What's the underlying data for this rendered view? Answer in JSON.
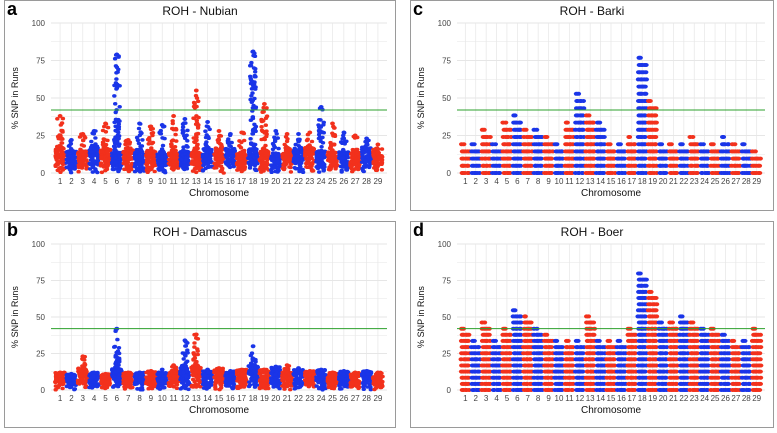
{
  "chart_data": [
    {
      "id": "a",
      "panel_label": "a",
      "title": "ROH - Nubian",
      "type": "scatter",
      "xlabel": "Chromosome",
      "ylabel": "% SNP in Runs",
      "ylim": [
        0,
        100
      ],
      "yticks": [
        "0",
        "25",
        "50",
        "75",
        "100"
      ],
      "threshold": 42,
      "discrete": false,
      "categories": [
        "1",
        "2",
        "3",
        "4",
        "5",
        "6",
        "7",
        "8",
        "9",
        "10",
        "11",
        "12",
        "13",
        "14",
        "15",
        "16",
        "17",
        "18",
        "19",
        "20",
        "21",
        "22",
        "23",
        "24",
        "25",
        "26",
        "27",
        "28",
        "29"
      ],
      "chrom_max": [
        38,
        22,
        26,
        28,
        33,
        79,
        22,
        33,
        31,
        32,
        38,
        36,
        55,
        34,
        28,
        26,
        27,
        81,
        46,
        28,
        26,
        26,
        27,
        44,
        33,
        27,
        25,
        23,
        19
      ]
    },
    {
      "id": "c",
      "panel_label": "c",
      "title": "ROH - Barki",
      "type": "scatter",
      "xlabel": "Chromosome",
      "ylabel": "% SNP in Runs",
      "ylim": [
        0,
        100
      ],
      "yticks": [
        "0",
        "25",
        "50",
        "75",
        "100"
      ],
      "threshold": 42,
      "discrete": true,
      "step": 4.8,
      "categories": [
        "1",
        "2",
        "3",
        "4",
        "5",
        "6",
        "7",
        "8",
        "9",
        "10",
        "11",
        "12",
        "13",
        "14",
        "15",
        "16",
        "17",
        "18",
        "19",
        "20",
        "21",
        "22",
        "23",
        "24",
        "25",
        "26",
        "27",
        "28",
        "29"
      ],
      "chrom_max": [
        19,
        19,
        29,
        19,
        34,
        38,
        29,
        29,
        24,
        19,
        34,
        53,
        38,
        34,
        19,
        19,
        24,
        77,
        48,
        19,
        19,
        19,
        24,
        19,
        19,
        24,
        19,
        19,
        14
      ]
    },
    {
      "id": "b",
      "panel_label": "b",
      "title": "ROH - Damascus",
      "type": "scatter",
      "xlabel": "Chromosome",
      "ylabel": "% SNP in Runs",
      "ylim": [
        0,
        100
      ],
      "yticks": [
        "0",
        "25",
        "50",
        "75",
        "100"
      ],
      "threshold": 42,
      "discrete": false,
      "categories": [
        "1",
        "2",
        "3",
        "4",
        "5",
        "6",
        "7",
        "8",
        "9",
        "10",
        "11",
        "12",
        "13",
        "14",
        "15",
        "16",
        "17",
        "18",
        "19",
        "20",
        "21",
        "22",
        "23",
        "24",
        "25",
        "26",
        "27",
        "28",
        "29"
      ],
      "chrom_max": [
        12,
        11,
        23,
        12,
        11,
        42,
        12,
        12,
        13,
        14,
        17,
        34,
        38,
        14,
        15,
        13,
        14,
        30,
        14,
        16,
        17,
        15,
        13,
        14,
        12,
        13,
        12,
        13,
        12
      ]
    },
    {
      "id": "d",
      "panel_label": "d",
      "title": "ROH - Boer",
      "type": "scatter",
      "xlabel": "Chromosome",
      "ylabel": "% SNP in Runs",
      "ylim": [
        0,
        100
      ],
      "yticks": [
        "0",
        "25",
        "50",
        "75",
        "100"
      ],
      "threshold": 42,
      "discrete": true,
      "step": 4.2,
      "categories": [
        "1",
        "2",
        "3",
        "4",
        "5",
        "6",
        "7",
        "8",
        "9",
        "10",
        "11",
        "12",
        "13",
        "14",
        "15",
        "16",
        "17",
        "18",
        "19",
        "20",
        "21",
        "22",
        "23",
        "24",
        "25",
        "26",
        "27",
        "28",
        "29"
      ],
      "chrom_max": [
        42,
        34,
        46,
        34,
        42,
        54,
        50,
        42,
        38,
        34,
        34,
        34,
        50,
        34,
        34,
        34,
        42,
        79,
        67,
        46,
        46,
        50,
        46,
        42,
        42,
        38,
        34,
        34,
        42
      ]
    }
  ],
  "colors": {
    "odd": "#f2311c",
    "even": "#1a35e8",
    "threshold": "#2ca02c",
    "grid": "#e6e6e6",
    "frame": "#9a9a9a"
  }
}
